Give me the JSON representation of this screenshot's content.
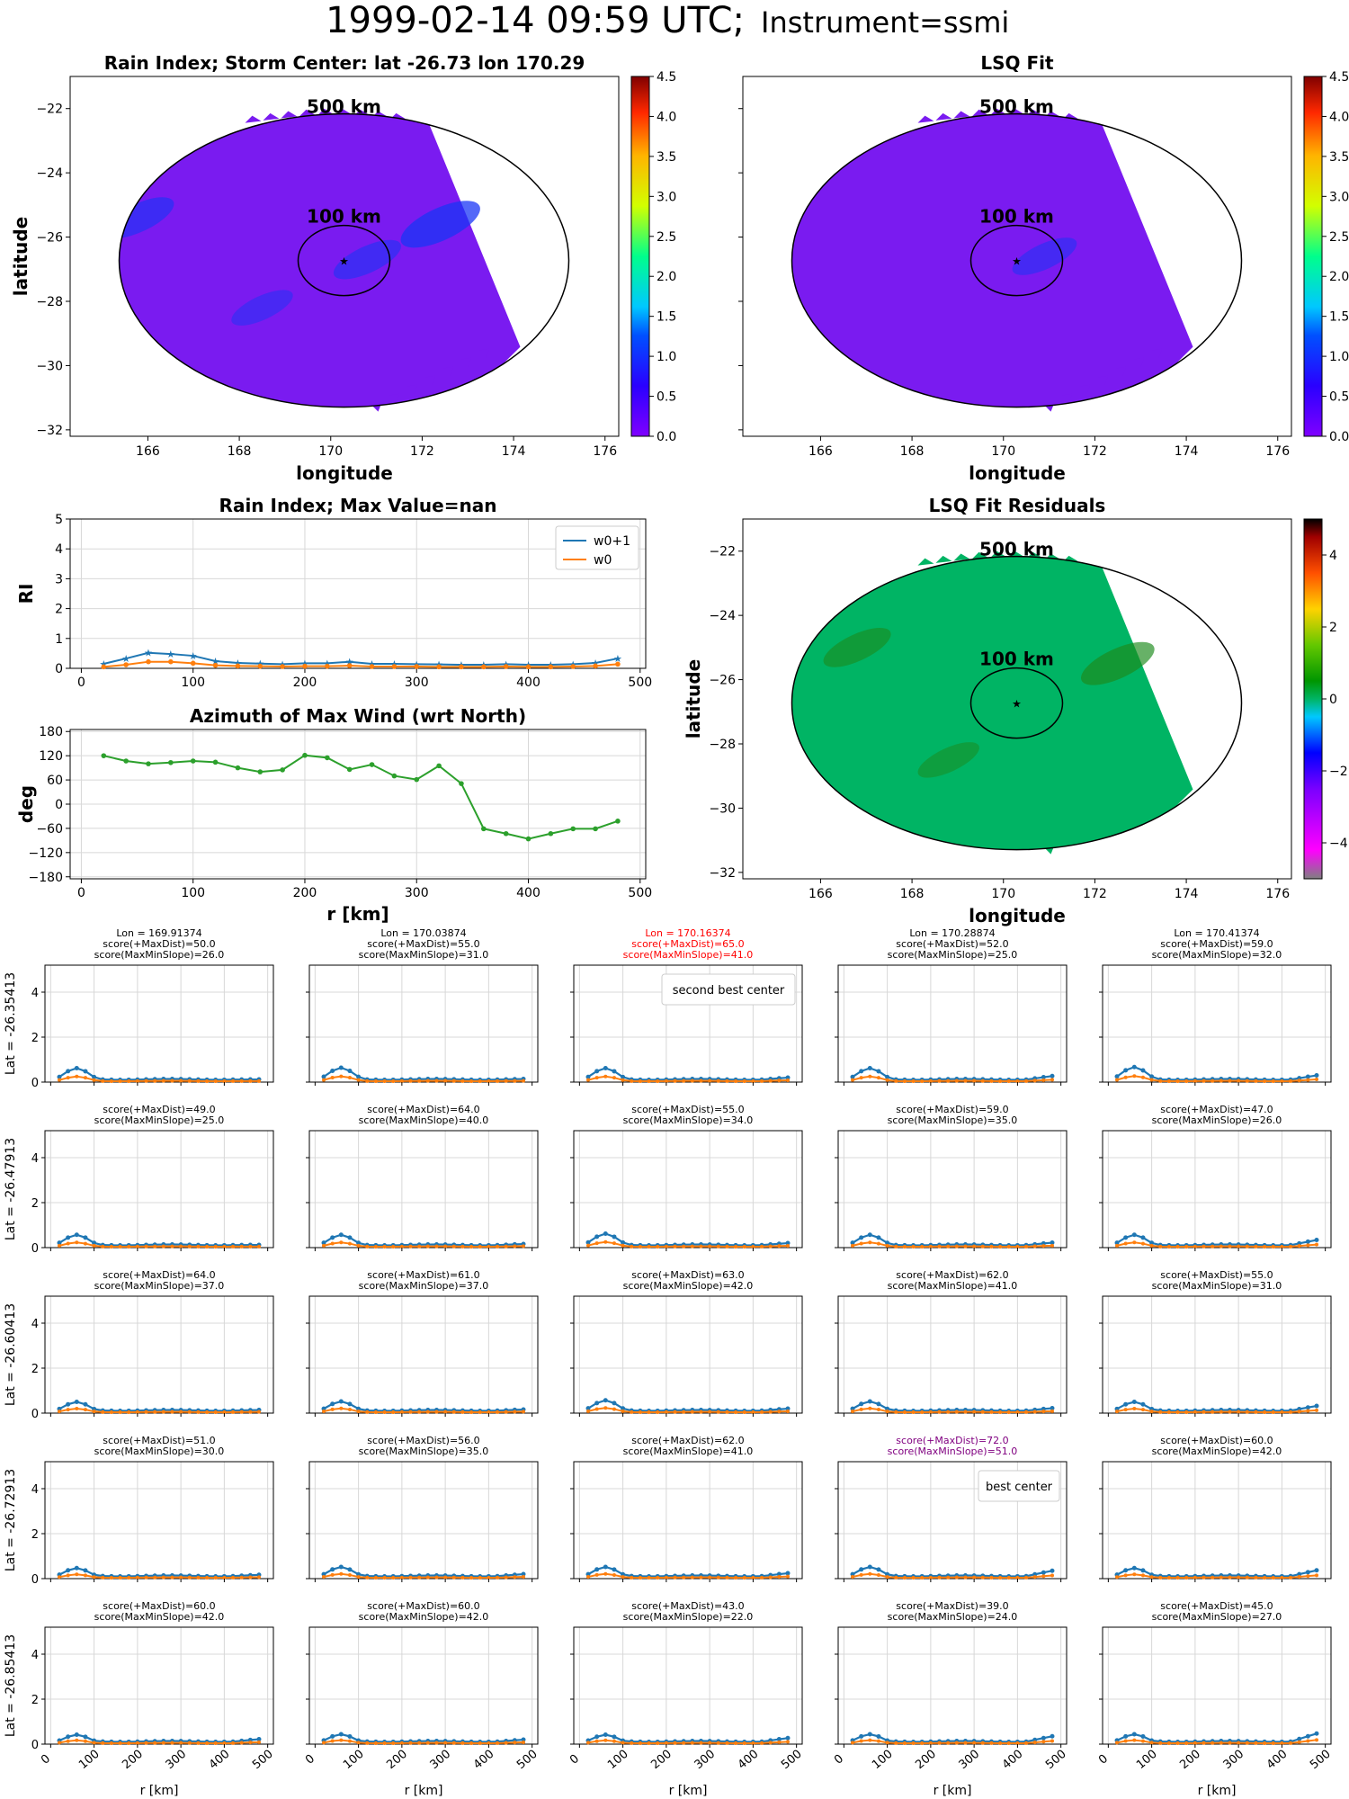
{
  "figure": {
    "title_main": "1999-02-14 09:59 UTC;",
    "title_instrument": "Instrument=ssmi"
  },
  "colors": {
    "blue_series": "#1f77b4",
    "orange_series": "#ff7f0e",
    "green_series": "#2ca02c",
    "field_low": "#7a1bf0",
    "field_blue": "#1a35f5",
    "resid_zero": "#00b464",
    "resid_dark": "#1c8a1c",
    "highlight_red": "#ff0000",
    "highlight_purple": "#800080"
  },
  "chart_data": [
    {
      "id": "rain-index-map",
      "type": "heatmap",
      "title": "Rain Index; Storm Center: lat -26.73 lon 170.29",
      "xlabel": "longitude",
      "ylabel": "latitude",
      "xlim": [
        164.3,
        176.3
      ],
      "ylim": [
        -32.2,
        -21.0
      ],
      "xticks": [
        166,
        168,
        170,
        172,
        174,
        176
      ],
      "yticks": [
        -22,
        -24,
        -26,
        -28,
        -30,
        -32
      ],
      "center": {
        "lon": 170.29,
        "lat": -26.73
      },
      "ring_labels": [
        "500 km",
        "100 km"
      ],
      "colorbar": {
        "min": 0.0,
        "max": 4.5,
        "ticks": [
          0.0,
          0.5,
          1.0,
          1.5,
          2.0,
          2.5,
          3.0,
          3.5,
          4.0,
          4.5
        ]
      },
      "patches": [
        {
          "lon": 165.8,
          "lat": -25.4,
          "value": 0.7
        },
        {
          "lon": 172.4,
          "lat": -25.6,
          "value": 1.0
        },
        {
          "lon": 170.8,
          "lat": -26.7,
          "value": 0.6
        },
        {
          "lon": 168.5,
          "lat": -28.2,
          "value": 0.4
        }
      ]
    },
    {
      "id": "lsq-fit-map",
      "type": "heatmap",
      "title": "LSQ Fit",
      "xlabel": "longitude",
      "xlim": [
        164.3,
        176.3
      ],
      "ylim": [
        -32.2,
        -21.0
      ],
      "xticks": [
        166,
        168,
        170,
        172,
        174,
        176
      ],
      "center": {
        "lon": 170.29,
        "lat": -26.73
      },
      "ring_labels": [
        "500 km",
        "100 km"
      ],
      "colorbar": {
        "min": 0.0,
        "max": 4.5,
        "ticks": [
          0.0,
          0.5,
          1.0,
          1.5,
          2.0,
          2.5,
          3.0,
          3.5,
          4.0,
          4.5
        ]
      },
      "patches": [
        {
          "lon": 170.9,
          "lat": -26.6,
          "value": 0.5
        }
      ]
    },
    {
      "id": "rain-index-profile",
      "type": "line",
      "title": "Rain Index; Max Value=nan",
      "ylabel": "RI",
      "xlim": [
        -10,
        505
      ],
      "ylim": [
        0,
        5
      ],
      "xticks": [
        0,
        100,
        200,
        300,
        400,
        500
      ],
      "yticks": [
        0,
        1,
        2,
        3,
        4,
        5
      ],
      "x": [
        20,
        40,
        60,
        80,
        100,
        120,
        140,
        160,
        180,
        200,
        220,
        240,
        260,
        280,
        300,
        320,
        340,
        360,
        380,
        400,
        420,
        440,
        460,
        480
      ],
      "series": [
        {
          "name": "w0+1",
          "values": [
            0.15,
            0.33,
            0.52,
            0.48,
            0.42,
            0.24,
            0.18,
            0.16,
            0.14,
            0.17,
            0.17,
            0.22,
            0.15,
            0.15,
            0.14,
            0.13,
            0.12,
            0.12,
            0.14,
            0.12,
            0.12,
            0.14,
            0.18,
            0.33
          ]
        },
        {
          "name": "w0",
          "values": [
            0.05,
            0.12,
            0.22,
            0.22,
            0.17,
            0.1,
            0.08,
            0.07,
            0.06,
            0.07,
            0.07,
            0.09,
            0.06,
            0.06,
            0.06,
            0.05,
            0.05,
            0.05,
            0.06,
            0.05,
            0.05,
            0.06,
            0.08,
            0.14
          ]
        }
      ]
    },
    {
      "id": "azimuth-profile",
      "type": "line",
      "title": "Azimuth of Max Wind (wrt North)",
      "xlabel": "r [km]",
      "ylabel": "deg",
      "xlim": [
        -10,
        505
      ],
      "ylim": [
        -185,
        185
      ],
      "xticks": [
        0,
        100,
        200,
        300,
        400,
        500
      ],
      "yticks": [
        180,
        120,
        60,
        0,
        -60,
        -120,
        -180
      ],
      "x": [
        20,
        40,
        60,
        80,
        100,
        120,
        140,
        160,
        180,
        200,
        220,
        240,
        260,
        280,
        300,
        320,
        340,
        360,
        380,
        400,
        420,
        440,
        460,
        480
      ],
      "series": [
        {
          "name": "",
          "values": [
            120,
            107,
            100,
            103,
            107,
            104,
            90,
            80,
            85,
            121,
            115,
            86,
            98,
            70,
            61,
            95,
            51,
            -61,
            -73,
            -86,
            -73,
            -61,
            -61,
            -42
          ]
        }
      ]
    },
    {
      "id": "lsq-residuals-map",
      "type": "heatmap",
      "title": "LSQ Fit Residuals",
      "xlabel": "longitude",
      "ylabel": "latitude",
      "xlim": [
        164.3,
        176.3
      ],
      "ylim": [
        -32.2,
        -21.0
      ],
      "xticks": [
        166,
        168,
        170,
        172,
        174,
        176
      ],
      "yticks": [
        -22,
        -24,
        -26,
        -28,
        -30,
        -32
      ],
      "center": {
        "lon": 170.29,
        "lat": -26.73
      },
      "ring_labels": [
        "500 km",
        "100 km"
      ],
      "colorbar": {
        "min": -5.0,
        "max": 5.0,
        "ticks": [
          4,
          2,
          0,
          -2,
          -4
        ]
      },
      "patches": [
        {
          "lon": 166.8,
          "lat": -25.0,
          "value": 0.6
        },
        {
          "lon": 172.5,
          "lat": -25.5,
          "value": 0.8
        },
        {
          "lon": 168.8,
          "lat": -28.5,
          "value": 0.4
        }
      ]
    }
  ],
  "grid": {
    "xlabel": "r [km]",
    "ytick_labels": [
      "0",
      "2",
      "4"
    ],
    "xtick_labels": [
      "0",
      "100",
      "200",
      "300",
      "400",
      "500"
    ],
    "rows": [
      {
        "lat_label": "Lat = -26.35413",
        "cells": [
          {
            "lines": [
              "Lon = 169.91374",
              "score(+MaxDist)=50.0",
              "score(MaxMinSlope)=26.0"
            ],
            "color": "#000000",
            "legend": "",
            "peak": 0.6,
            "edge": 0.1
          },
          {
            "lines": [
              "Lon = 170.03874",
              "score(+MaxDist)=55.0",
              "score(MaxMinSlope)=31.0"
            ],
            "color": "#000000",
            "legend": "",
            "peak": 0.62,
            "edge": 0.12
          },
          {
            "lines": [
              "Lon = 170.16374",
              "score(+MaxDist)=65.0",
              "score(MaxMinSlope)=41.0"
            ],
            "color": "#ff0000",
            "legend": "second best center",
            "peak": 0.6,
            "edge": 0.18
          },
          {
            "lines": [
              "Lon = 170.28874",
              "score(+MaxDist)=52.0",
              "score(MaxMinSlope)=25.0"
            ],
            "color": "#000000",
            "legend": "",
            "peak": 0.6,
            "edge": 0.25
          },
          {
            "lines": [
              "Lon = 170.41374",
              "score(+MaxDist)=59.0",
              "score(MaxMinSlope)=32.0"
            ],
            "color": "#000000",
            "legend": "",
            "peak": 0.65,
            "edge": 0.28
          }
        ]
      },
      {
        "lat_label": "Lat = -26.47913",
        "cells": [
          {
            "lines": [
              "score(+MaxDist)=49.0",
              "score(MaxMinSlope)=25.0"
            ],
            "color": "#000000",
            "legend": "",
            "peak": 0.55,
            "edge": 0.1
          },
          {
            "lines": [
              "score(+MaxDist)=64.0",
              "score(MaxMinSlope)=40.0"
            ],
            "color": "#000000",
            "legend": "",
            "peak": 0.55,
            "edge": 0.14
          },
          {
            "lines": [
              "score(+MaxDist)=55.0",
              "score(MaxMinSlope)=34.0"
            ],
            "color": "#000000",
            "legend": "",
            "peak": 0.6,
            "edge": 0.18
          },
          {
            "lines": [
              "score(+MaxDist)=59.0",
              "score(MaxMinSlope)=35.0"
            ],
            "color": "#000000",
            "legend": "",
            "peak": 0.55,
            "edge": 0.2
          },
          {
            "lines": [
              "score(+MaxDist)=47.0",
              "score(MaxMinSlope)=26.0"
            ],
            "color": "#000000",
            "legend": "",
            "peak": 0.55,
            "edge": 0.32
          }
        ]
      },
      {
        "lat_label": "Lat = -26.60413",
        "cells": [
          {
            "lines": [
              "score(+MaxDist)=64.0",
              "score(MaxMinSlope)=37.0"
            ],
            "color": "#000000",
            "legend": "",
            "peak": 0.48,
            "edge": 0.12
          },
          {
            "lines": [
              "score(+MaxDist)=61.0",
              "score(MaxMinSlope)=37.0"
            ],
            "color": "#000000",
            "legend": "",
            "peak": 0.5,
            "edge": 0.14
          },
          {
            "lines": [
              "score(+MaxDist)=63.0",
              "score(MaxMinSlope)=42.0"
            ],
            "color": "#000000",
            "legend": "",
            "peak": 0.55,
            "edge": 0.18
          },
          {
            "lines": [
              "score(+MaxDist)=62.0",
              "score(MaxMinSlope)=41.0"
            ],
            "color": "#000000",
            "legend": "",
            "peak": 0.5,
            "edge": 0.2
          },
          {
            "lines": [
              "score(+MaxDist)=55.0",
              "score(MaxMinSlope)=31.0"
            ],
            "color": "#000000",
            "legend": "",
            "peak": 0.48,
            "edge": 0.3
          }
        ]
      },
      {
        "lat_label": "Lat = -26.72913",
        "cells": [
          {
            "lines": [
              "score(+MaxDist)=51.0",
              "score(MaxMinSlope)=30.0"
            ],
            "color": "#000000",
            "legend": "",
            "peak": 0.45,
            "edge": 0.15
          },
          {
            "lines": [
              "score(+MaxDist)=56.0",
              "score(MaxMinSlope)=35.0"
            ],
            "color": "#000000",
            "legend": "",
            "peak": 0.5,
            "edge": 0.18
          },
          {
            "lines": [
              "score(+MaxDist)=62.0",
              "score(MaxMinSlope)=41.0"
            ],
            "color": "#000000",
            "legend": "",
            "peak": 0.5,
            "edge": 0.22
          },
          {
            "lines": [
              "score(+MaxDist)=72.0",
              "score(MaxMinSlope)=51.0"
            ],
            "color": "#800080",
            "legend": "best center",
            "peak": 0.5,
            "edge": 0.33
          },
          {
            "lines": [
              "score(+MaxDist)=60.0",
              "score(MaxMinSlope)=42.0"
            ],
            "color": "#000000",
            "legend": "",
            "peak": 0.45,
            "edge": 0.35
          }
        ]
      },
      {
        "lat_label": "Lat = -26.85413",
        "cells": [
          {
            "lines": [
              "score(+MaxDist)=60.0",
              "score(MaxMinSlope)=42.0"
            ],
            "color": "#000000",
            "legend": "",
            "peak": 0.4,
            "edge": 0.2
          },
          {
            "lines": [
              "score(+MaxDist)=60.0",
              "score(MaxMinSlope)=42.0"
            ],
            "color": "#000000",
            "legend": "",
            "peak": 0.42,
            "edge": 0.18
          },
          {
            "lines": [
              "score(+MaxDist)=43.0",
              "score(MaxMinSlope)=22.0"
            ],
            "color": "#000000",
            "legend": "",
            "peak": 0.4,
            "edge": 0.25
          },
          {
            "lines": [
              "score(+MaxDist)=39.0",
              "score(MaxMinSlope)=24.0"
            ],
            "color": "#000000",
            "legend": "",
            "peak": 0.42,
            "edge": 0.33
          },
          {
            "lines": [
              "score(+MaxDist)=45.0",
              "score(MaxMinSlope)=27.0"
            ],
            "color": "#000000",
            "legend": "",
            "peak": 0.42,
            "edge": 0.45
          }
        ]
      }
    ]
  }
}
